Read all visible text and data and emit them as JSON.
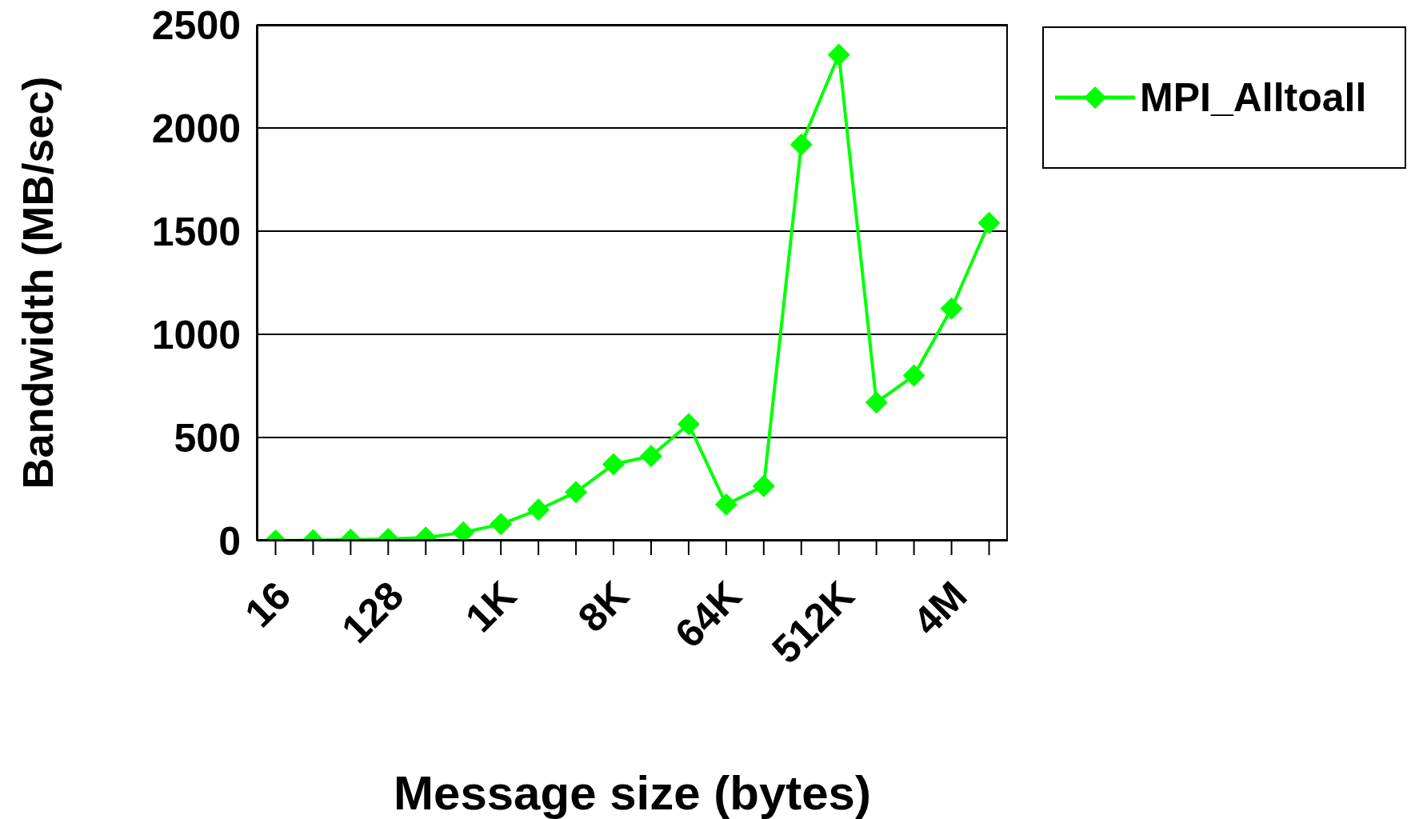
{
  "chart_data": {
    "type": "line",
    "xlabel": "Message size (bytes)",
    "ylabel": "Bandwidth (MB/sec)",
    "categories": [
      "16",
      null,
      null,
      "128",
      null,
      null,
      "1K",
      null,
      null,
      "8K",
      null,
      null,
      "64K",
      null,
      null,
      "512K",
      null,
      null,
      "4M",
      null
    ],
    "series": [
      {
        "name": "MPI_Alltoall",
        "color": "#00ff00",
        "values": [
          0,
          2,
          5,
          8,
          15,
          40,
          80,
          150,
          235,
          370,
          410,
          565,
          175,
          265,
          1920,
          2355,
          670,
          800,
          1125,
          1540
        ]
      }
    ],
    "ylim": [
      0,
      2500
    ],
    "yticks": [
      0,
      500,
      1000,
      1500,
      2000,
      2500
    ],
    "grid": "y",
    "legend": "top right",
    "marker": "diamond",
    "line_style": "solid"
  }
}
